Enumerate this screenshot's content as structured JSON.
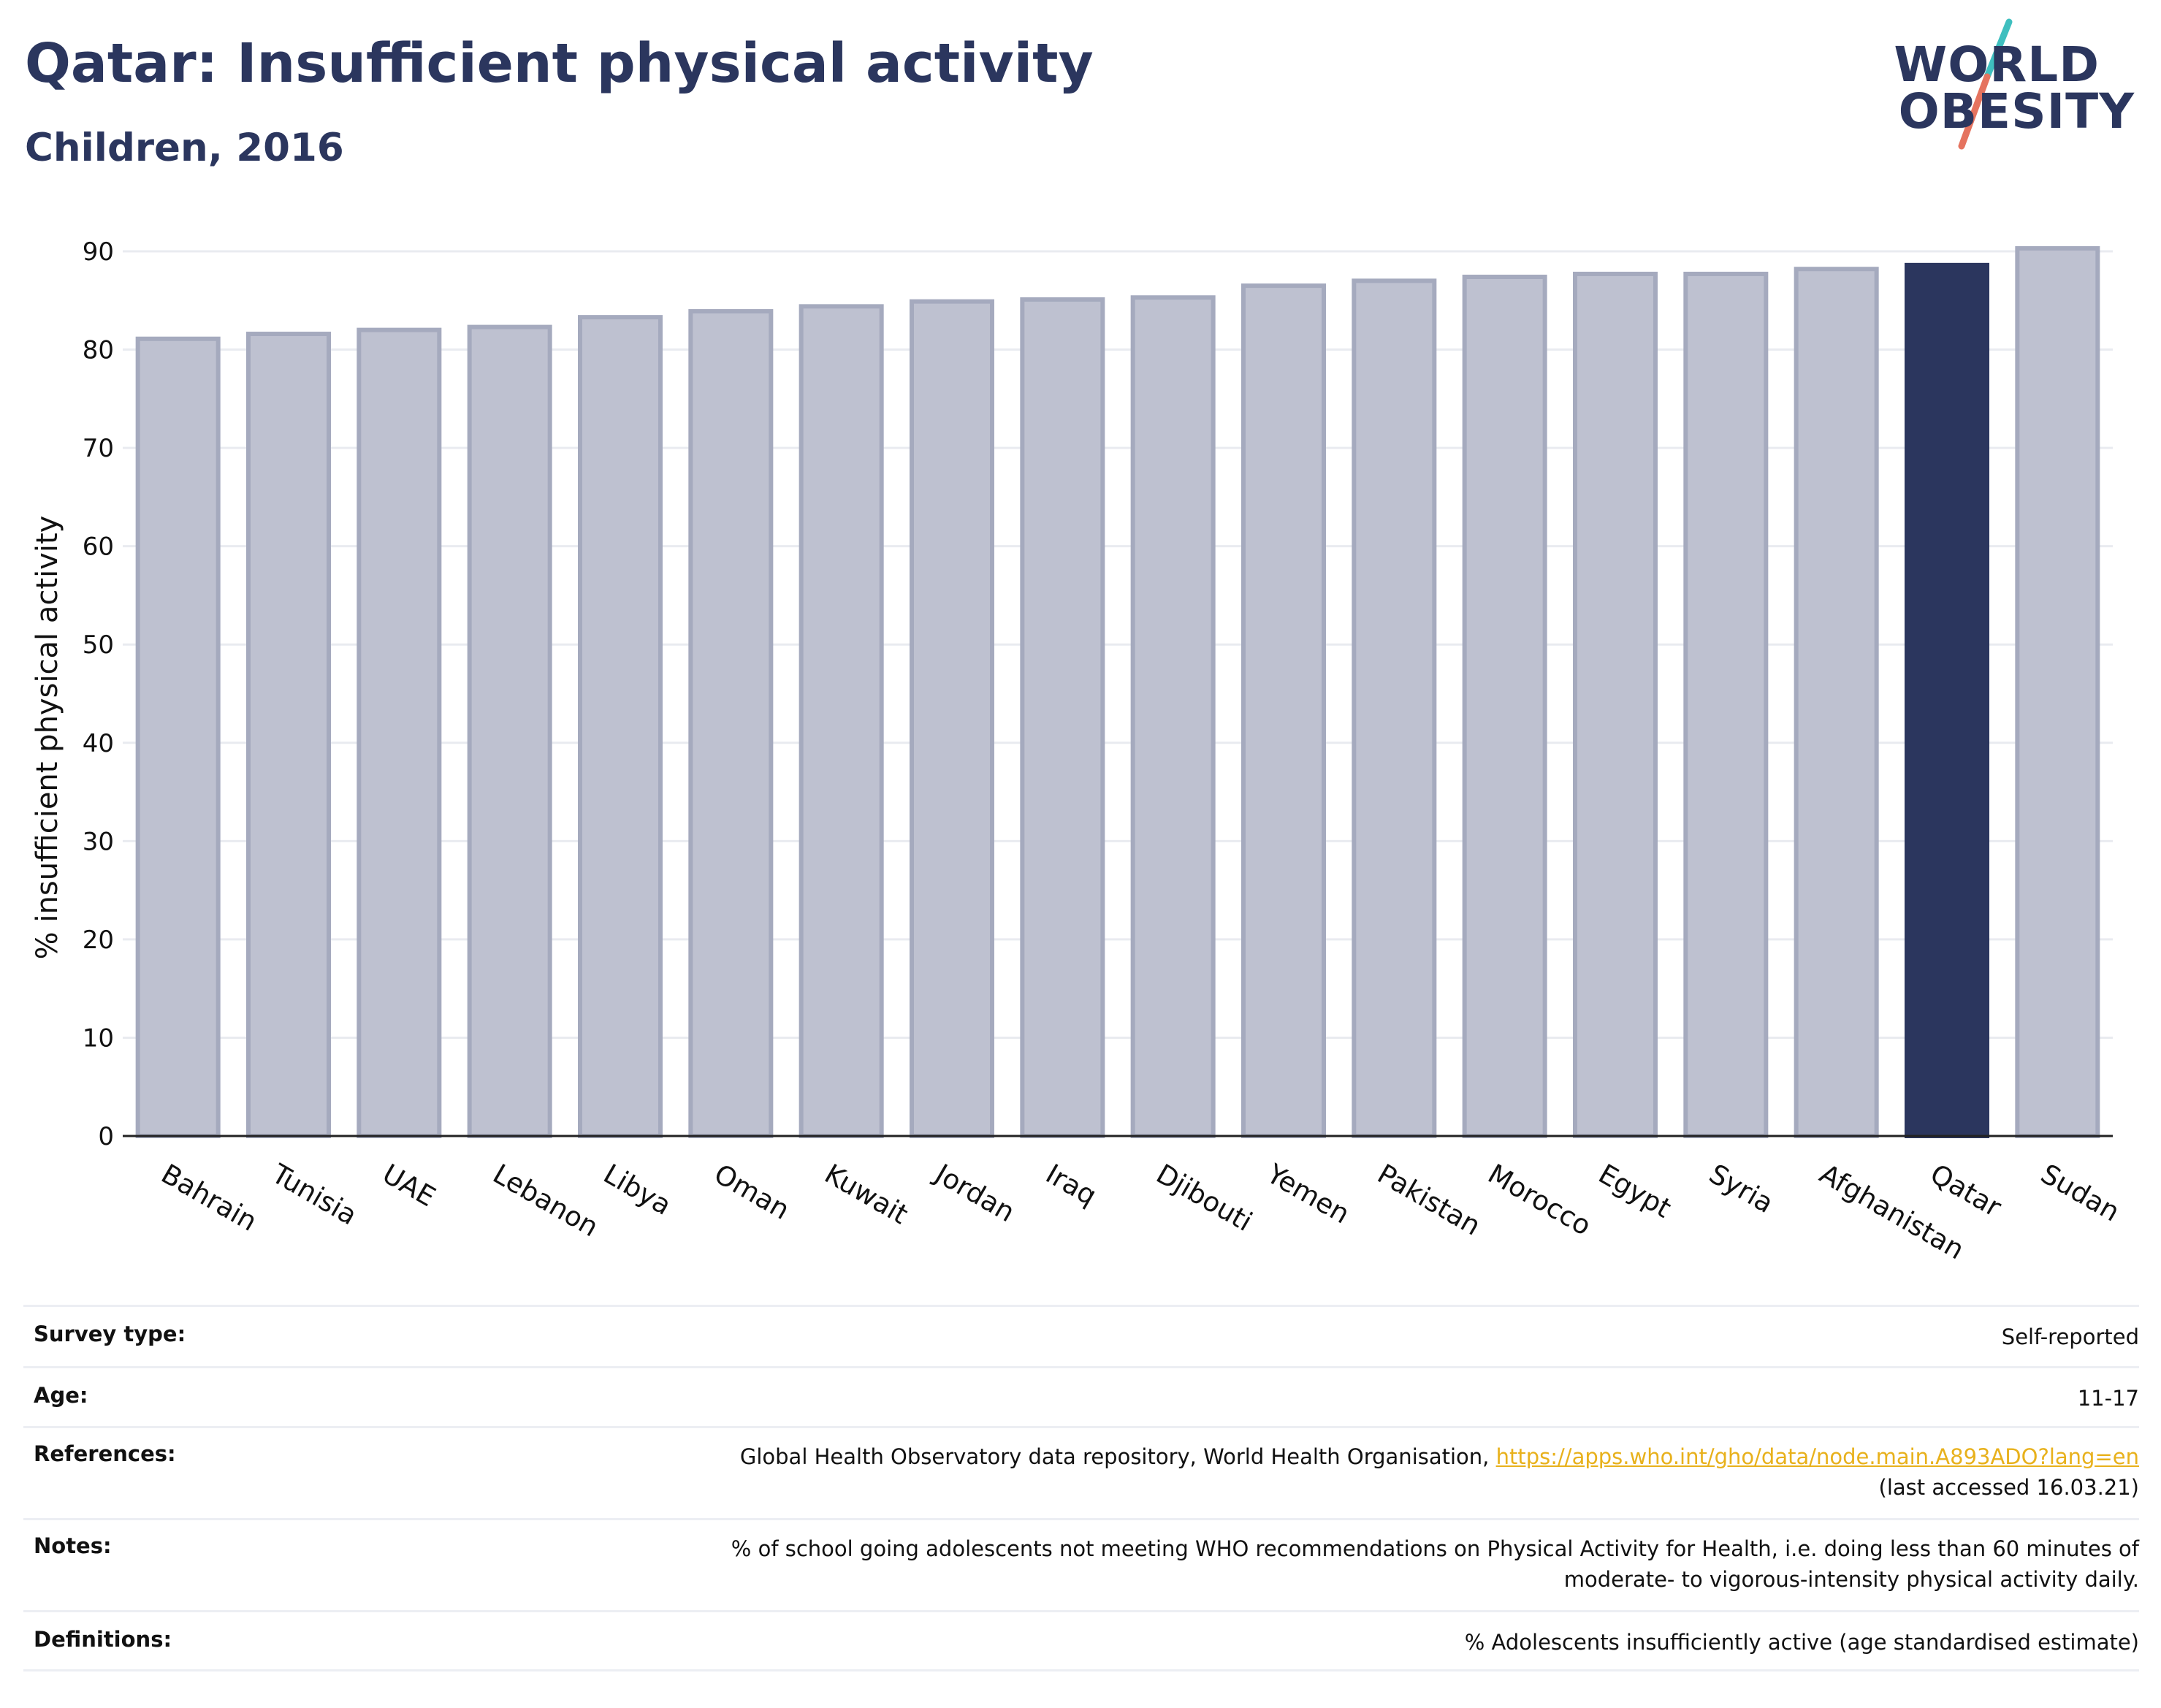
{
  "header": {
    "title": "Qatar: Insufficient physical activity",
    "subtitle": "Children, 2016"
  },
  "logo": {
    "line1": "WORLD",
    "line2": "OBESITY",
    "slash_colors": [
      "#3fbfbf",
      "#e5735f"
    ]
  },
  "colors": {
    "highlight_bar": "#2b365e",
    "bar_fill": "#bec1d0",
    "bar_border": "#a5aabe",
    "grid": "#e9ebf0",
    "link": "#e8b11c"
  },
  "chart_data": {
    "type": "bar",
    "categories": [
      "Bahrain",
      "Tunisia",
      "UAE",
      "Lebanon",
      "Libya",
      "Oman",
      "Kuwait",
      "Jordan",
      "Iraq",
      "Djibouti",
      "Yemen",
      "Pakistan",
      "Morocco",
      "Egypt",
      "Syria",
      "Afghanistan",
      "Qatar",
      "Sudan"
    ],
    "values": [
      81.1,
      81.6,
      82.0,
      82.3,
      83.3,
      83.9,
      84.4,
      84.9,
      85.1,
      85.3,
      86.5,
      87.0,
      87.4,
      87.7,
      87.7,
      88.2,
      88.6,
      90.3
    ],
    "highlight": "Qatar",
    "title": "",
    "xlabel": "",
    "ylabel": "% insufficient physical activity",
    "ylim": [
      0,
      90
    ],
    "yticks": [
      0,
      10,
      20,
      30,
      40,
      50,
      60,
      70,
      80,
      90
    ],
    "grid": true
  },
  "info": {
    "survey_type": {
      "label": "Survey type:",
      "value": "Self-reported"
    },
    "age": {
      "label": "Age:",
      "value": "11-17"
    },
    "references": {
      "label": "References:",
      "text": "Global Health Observatory data repository, World Health Organisation, ",
      "link": "https://apps.who.int/gho/data/node.main.A893ADO?lang=en",
      "accessed": "(last accessed 16.03.21)"
    },
    "notes": {
      "label": "Notes:",
      "line1": "% of school going adolescents not meeting WHO recommendations on Physical Activity for Health, i.e. doing less than 60 minutes of",
      "line2": "moderate- to vigorous-intensity physical activity daily."
    },
    "definitions": {
      "label": "Definitions:",
      "value": "% Adolescents insufficiently active (age standardised estimate)"
    }
  }
}
